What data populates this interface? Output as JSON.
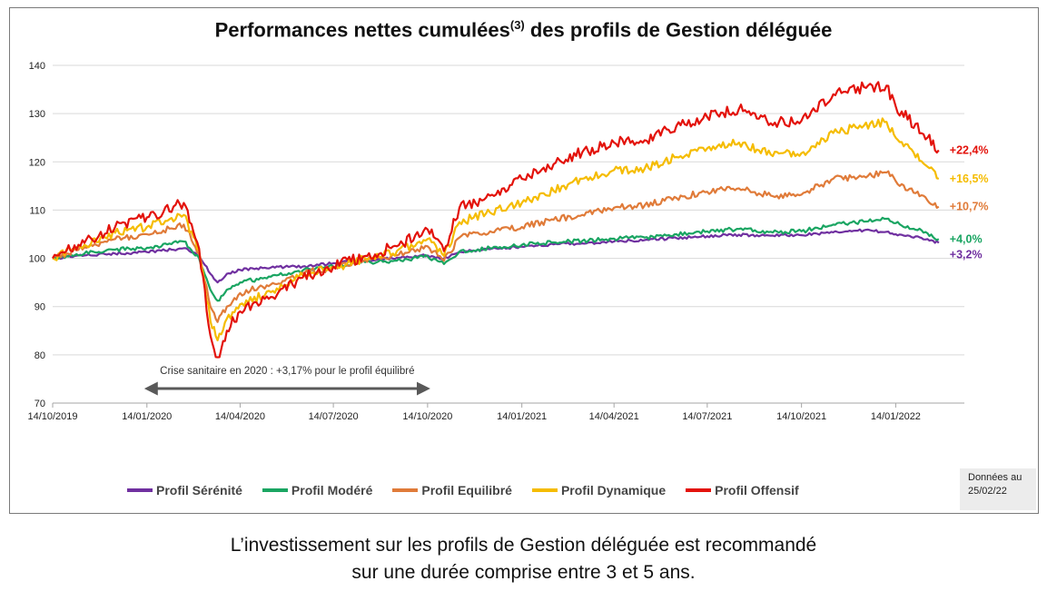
{
  "chart_data": {
    "type": "line",
    "title": "Performances nettes cumulées",
    "title_superscript": "(3)",
    "title_suffix": " des profils de Gestion déléguée",
    "xlabel": "",
    "ylabel": "",
    "ylim": [
      70,
      140
    ],
    "yticks": [
      70,
      80,
      90,
      100,
      110,
      120,
      130,
      140
    ],
    "xlim": [
      "2019-10-14",
      "2022-03-22"
    ],
    "xticks": [
      "2019-10-14",
      "2020-01-14",
      "2020-04-14",
      "2020-07-14",
      "2020-10-14",
      "2021-01-14",
      "2021-04-14",
      "2021-07-14",
      "2021-10-14",
      "2022-01-14"
    ],
    "xtick_labels": [
      "14/10/2019",
      "14/01/2020",
      "14/04/2020",
      "14/07/2020",
      "14/10/2020",
      "14/01/2021",
      "14/04/2021",
      "14/07/2021",
      "14/10/2021",
      "14/01/2022"
    ],
    "grid": "horizontal",
    "legend_position": "bottom",
    "series": [
      {
        "name": "Profil Sérénité",
        "color": "#7030a0",
        "end_label": "+3,2%",
        "points": [
          [
            "2019-10-14",
            100.0
          ],
          [
            "2019-11-14",
            100.6
          ],
          [
            "2019-12-14",
            101.0
          ],
          [
            "2020-01-14",
            101.3
          ],
          [
            "2020-02-19",
            102.1
          ],
          [
            "2020-03-05",
            100.5
          ],
          [
            "2020-03-16",
            96.8
          ],
          [
            "2020-03-23",
            95.0
          ],
          [
            "2020-04-01",
            96.8
          ],
          [
            "2020-04-14",
            97.6
          ],
          [
            "2020-05-14",
            98.1
          ],
          [
            "2020-06-14",
            98.3
          ],
          [
            "2020-07-14",
            99.0
          ],
          [
            "2020-08-14",
            99.6
          ],
          [
            "2020-09-14",
            100.1
          ],
          [
            "2020-10-14",
            100.6
          ],
          [
            "2020-10-30",
            100.0
          ],
          [
            "2020-11-14",
            101.3
          ],
          [
            "2020-12-14",
            101.9
          ],
          [
            "2021-01-14",
            102.4
          ],
          [
            "2021-02-14",
            102.9
          ],
          [
            "2021-03-14",
            103.1
          ],
          [
            "2021-04-14",
            103.5
          ],
          [
            "2021-05-14",
            103.8
          ],
          [
            "2021-06-14",
            104.2
          ],
          [
            "2021-07-14",
            104.6
          ],
          [
            "2021-08-14",
            104.9
          ],
          [
            "2021-09-14",
            104.7
          ],
          [
            "2021-10-14",
            104.8
          ],
          [
            "2021-11-14",
            105.4
          ],
          [
            "2021-12-14",
            105.8
          ],
          [
            "2022-01-05",
            105.5
          ],
          [
            "2022-01-14",
            105.0
          ],
          [
            "2022-02-14",
            104.0
          ],
          [
            "2022-02-25",
            103.2
          ]
        ]
      },
      {
        "name": "Profil Modéré",
        "color": "#1aa562",
        "end_label": "+4,0%",
        "points": [
          [
            "2019-10-14",
            100.0
          ],
          [
            "2019-11-14",
            101.0
          ],
          [
            "2019-12-14",
            101.8
          ],
          [
            "2020-01-14",
            102.2
          ],
          [
            "2020-02-19",
            103.5
          ],
          [
            "2020-03-05",
            100.0
          ],
          [
            "2020-03-16",
            93.5
          ],
          [
            "2020-03-23",
            91.2
          ],
          [
            "2020-04-01",
            93.5
          ],
          [
            "2020-04-14",
            95.0
          ],
          [
            "2020-05-14",
            96.2
          ],
          [
            "2020-06-14",
            97.5
          ],
          [
            "2020-07-14",
            98.3
          ],
          [
            "2020-08-14",
            99.2
          ],
          [
            "2020-09-14",
            99.5
          ],
          [
            "2020-10-14",
            100.4
          ],
          [
            "2020-10-30",
            98.8
          ],
          [
            "2020-11-14",
            101.4
          ],
          [
            "2020-12-14",
            102.1
          ],
          [
            "2021-01-14",
            102.8
          ],
          [
            "2021-02-14",
            103.3
          ],
          [
            "2021-03-14",
            103.6
          ],
          [
            "2021-04-14",
            104.1
          ],
          [
            "2021-05-14",
            104.3
          ],
          [
            "2021-06-14",
            105.0
          ],
          [
            "2021-07-14",
            105.6
          ],
          [
            "2021-08-14",
            106.1
          ],
          [
            "2021-09-14",
            105.5
          ],
          [
            "2021-10-14",
            105.6
          ],
          [
            "2021-11-14",
            107.0
          ],
          [
            "2021-12-14",
            107.6
          ],
          [
            "2022-01-05",
            108.2
          ],
          [
            "2022-01-14",
            107.3
          ],
          [
            "2022-02-14",
            105.2
          ],
          [
            "2022-02-25",
            104.0
          ]
        ]
      },
      {
        "name": "Profil Equilibré",
        "color": "#e07b39",
        "end_label": "+10,7%",
        "points": [
          [
            "2019-10-14",
            100.0
          ],
          [
            "2019-11-14",
            102.3
          ],
          [
            "2019-12-14",
            104.0
          ],
          [
            "2020-01-14",
            105.0
          ],
          [
            "2020-02-19",
            107.0
          ],
          [
            "2020-03-05",
            101.0
          ],
          [
            "2020-03-16",
            90.0
          ],
          [
            "2020-03-23",
            86.8
          ],
          [
            "2020-04-01",
            90.0
          ],
          [
            "2020-04-14",
            92.8
          ],
          [
            "2020-05-14",
            94.6
          ],
          [
            "2020-06-14",
            97.0
          ],
          [
            "2020-07-14",
            98.0
          ],
          [
            "2020-08-14",
            99.7
          ],
          [
            "2020-09-14",
            100.6
          ],
          [
            "2020-10-14",
            102.5
          ],
          [
            "2020-10-30",
            99.5
          ],
          [
            "2020-11-14",
            104.3
          ],
          [
            "2020-12-14",
            105.6
          ],
          [
            "2021-01-14",
            106.5
          ],
          [
            "2021-02-14",
            108.0
          ],
          [
            "2021-03-14",
            109.0
          ],
          [
            "2021-04-14",
            110.5
          ],
          [
            "2021-05-14",
            111.0
          ],
          [
            "2021-06-14",
            112.5
          ],
          [
            "2021-07-14",
            113.8
          ],
          [
            "2021-08-14",
            114.5
          ],
          [
            "2021-09-14",
            113.0
          ],
          [
            "2021-10-14",
            113.2
          ],
          [
            "2021-11-14",
            116.5
          ],
          [
            "2021-12-14",
            117.0
          ],
          [
            "2022-01-05",
            117.8
          ],
          [
            "2022-01-14",
            116.0
          ],
          [
            "2022-02-14",
            112.0
          ],
          [
            "2022-02-25",
            110.7
          ]
        ]
      },
      {
        "name": "Profil Dynamique",
        "color": "#f5bc00",
        "end_label": "+16,5%",
        "points": [
          [
            "2019-10-14",
            100.0
          ],
          [
            "2019-11-14",
            102.8
          ],
          [
            "2019-12-14",
            105.3
          ],
          [
            "2020-01-14",
            106.5
          ],
          [
            "2020-02-19",
            109.0
          ],
          [
            "2020-03-05",
            101.5
          ],
          [
            "2020-03-16",
            87.0
          ],
          [
            "2020-03-23",
            83.0
          ],
          [
            "2020-04-01",
            87.5
          ],
          [
            "2020-04-14",
            90.5
          ],
          [
            "2020-05-14",
            93.0
          ],
          [
            "2020-06-14",
            96.5
          ],
          [
            "2020-07-14",
            98.0
          ],
          [
            "2020-08-14",
            100.0
          ],
          [
            "2020-09-14",
            101.5
          ],
          [
            "2020-10-14",
            104.0
          ],
          [
            "2020-10-30",
            100.5
          ],
          [
            "2020-11-14",
            107.5
          ],
          [
            "2020-12-14",
            109.5
          ],
          [
            "2021-01-14",
            111.5
          ],
          [
            "2021-02-14",
            114.0
          ],
          [
            "2021-03-14",
            116.5
          ],
          [
            "2021-04-14",
            118.3
          ],
          [
            "2021-05-14",
            118.6
          ],
          [
            "2021-06-14",
            121.0
          ],
          [
            "2021-07-14",
            122.8
          ],
          [
            "2021-08-14",
            124.0
          ],
          [
            "2021-09-14",
            121.5
          ],
          [
            "2021-10-14",
            121.8
          ],
          [
            "2021-11-14",
            126.0
          ],
          [
            "2021-12-14",
            127.5
          ],
          [
            "2022-01-05",
            128.3
          ],
          [
            "2022-01-14",
            125.0
          ],
          [
            "2022-02-14",
            119.0
          ],
          [
            "2022-02-25",
            116.5
          ]
        ]
      },
      {
        "name": "Profil Offensif",
        "color": "#e3120b",
        "end_label": "+22,4%",
        "points": [
          [
            "2019-10-14",
            100.0
          ],
          [
            "2019-11-14",
            103.2
          ],
          [
            "2019-12-14",
            106.5
          ],
          [
            "2020-01-14",
            108.5
          ],
          [
            "2020-02-19",
            111.5
          ],
          [
            "2020-03-05",
            102.0
          ],
          [
            "2020-03-16",
            84.0
          ],
          [
            "2020-03-23",
            79.5
          ],
          [
            "2020-04-01",
            85.0
          ],
          [
            "2020-04-14",
            89.0
          ],
          [
            "2020-05-14",
            92.0
          ],
          [
            "2020-06-14",
            96.0
          ],
          [
            "2020-07-14",
            98.3
          ],
          [
            "2020-08-14",
            100.5
          ],
          [
            "2020-09-14",
            102.5
          ],
          [
            "2020-10-14",
            106.0
          ],
          [
            "2020-10-30",
            101.5
          ],
          [
            "2020-11-14",
            110.5
          ],
          [
            "2020-12-14",
            113.0
          ],
          [
            "2021-01-14",
            116.5
          ],
          [
            "2021-02-14",
            119.5
          ],
          [
            "2021-03-14",
            122.0
          ],
          [
            "2021-04-14",
            124.0
          ],
          [
            "2021-05-14",
            124.5
          ],
          [
            "2021-06-14",
            127.5
          ],
          [
            "2021-07-14",
            129.3
          ],
          [
            "2021-08-14",
            131.0
          ],
          [
            "2021-09-14",
            128.0
          ],
          [
            "2021-10-14",
            128.5
          ],
          [
            "2021-11-14",
            134.0
          ],
          [
            "2021-12-14",
            135.5
          ],
          [
            "2022-01-05",
            135.8
          ],
          [
            "2022-01-14",
            131.5
          ],
          [
            "2022-02-14",
            125.0
          ],
          [
            "2022-02-25",
            122.4
          ]
        ]
      }
    ],
    "annotation": {
      "text": "Crise sanitaire en 2020 : +3,17% pour le profil équilibré",
      "arrow_from": "2020-01-14",
      "arrow_to": "2020-10-14",
      "arrow_y": 73
    }
  },
  "date_note": {
    "line1": "Données au",
    "line2": "25/02/22"
  },
  "caption": {
    "line1": "L’investissement sur les profils de Gestion déléguée est recommandé",
    "line2": "sur une durée comprise entre 3 et 5 ans."
  }
}
